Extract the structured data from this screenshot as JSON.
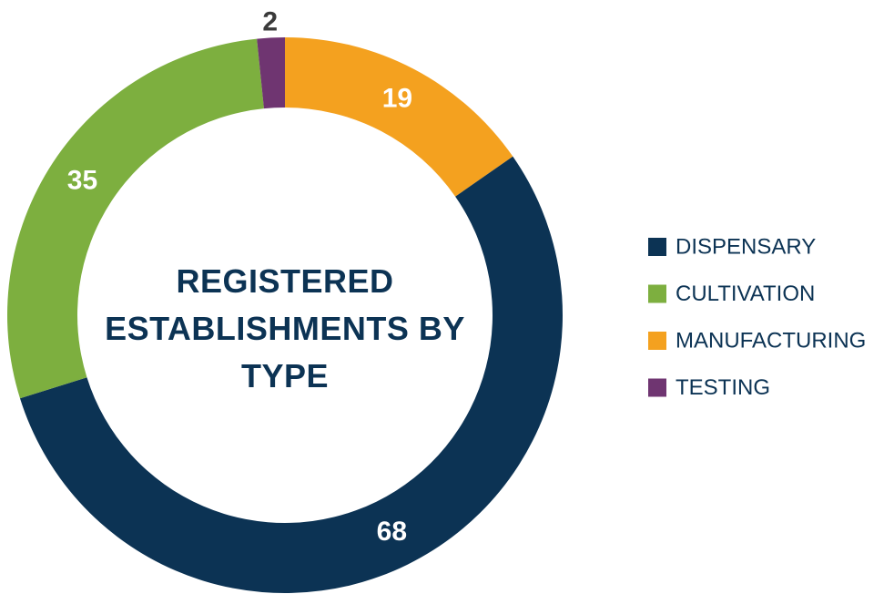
{
  "chart_data": {
    "type": "donut",
    "title": "REGISTERED ESTABLISHMENTS BY TYPE",
    "categories": [
      "DISPENSARY",
      "CULTIVATION",
      "MANUFACTURING",
      "TESTING"
    ],
    "values": [
      68,
      35,
      19,
      2
    ],
    "colors": [
      "#0c3354",
      "#7daf3f",
      "#f4a11f",
      "#6f3571"
    ],
    "legend": "right"
  }
}
